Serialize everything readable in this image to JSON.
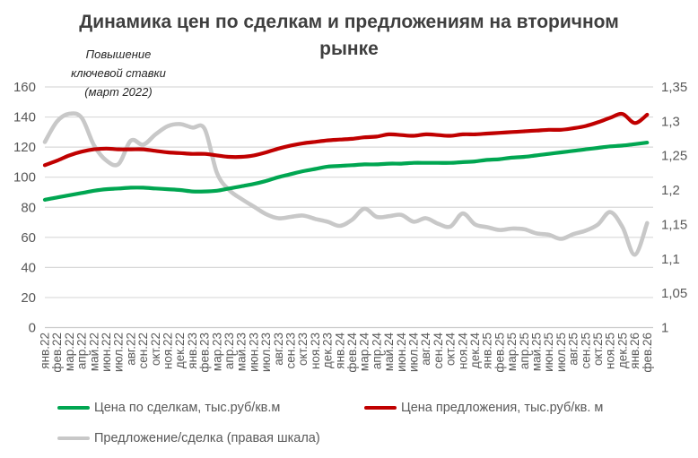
{
  "title": "Динамика цен по сделкам и предложениям на вторичном рынке",
  "annotation": "Повышение\nключевой ставки\n(март 2022)",
  "colors": {
    "deals_line": "#00A651",
    "offers_line": "#C00000",
    "ratio_line": "#C8C8C8",
    "gridline": "#D9D9D9",
    "axis_line": "#C9C9C9",
    "axis_text": "#595959",
    "title_text": "#3F3F3F",
    "annotation_text": "#262626",
    "legend_text": "#595959",
    "background": "#FFFFFF"
  },
  "chart_data": {
    "type": "line",
    "title": "Динамика цен по сделкам и предложениям на вторичном рынке",
    "grid": true,
    "legend_position": "bottom",
    "categories": [
      "янв.22",
      "фев.22",
      "мар.22",
      "апр.22",
      "май.22",
      "июн.22",
      "июл.22",
      "авг.22",
      "сен.22",
      "окт.22",
      "ноя.22",
      "дек.22",
      "янв.23",
      "фев.23",
      "мар.23",
      "апр.23",
      "май.23",
      "июн.23",
      "июл.23",
      "авг.23",
      "сен.23",
      "окт.23",
      "ноя.23",
      "дек.23",
      "янв.24",
      "фев.24",
      "мар.24",
      "апр.24",
      "май.24",
      "июн.24",
      "июл.24",
      "авг.24",
      "сен.24",
      "окт.24",
      "ноя.24",
      "дек.24",
      "янв.25",
      "фев.25",
      "мар.25",
      "апр.25",
      "май.25",
      "июн.25",
      "июл.25",
      "авг.25",
      "сен.25",
      "окт.25",
      "ноя.25",
      "дек.25",
      "янв.26",
      "фев.26"
    ],
    "left_axis": {
      "min": 0,
      "max": 160,
      "step": 20,
      "labels": [
        "160",
        "140",
        "120",
        "100",
        "80",
        "60",
        "40",
        "20",
        "0"
      ]
    },
    "right_axis": {
      "min": 1,
      "max": 1.35,
      "step": 0.05,
      "labels": [
        "1,35",
        "1,3",
        "1,25",
        "1,2",
        "1,15",
        "1,1",
        "1,05",
        "1"
      ]
    },
    "series": [
      {
        "name": "Цена по сделкам, тыс.руб/кв.м",
        "axis": "left",
        "color": "#00A651",
        "width": 4.2,
        "values": [
          85,
          86.5,
          88,
          89.5,
          91,
          92,
          92.5,
          93,
          93,
          92.5,
          92,
          91.5,
          90.5,
          90.5,
          91,
          92.5,
          94,
          95.5,
          97.5,
          100,
          102,
          104,
          105.5,
          107,
          107.5,
          108,
          108.5,
          108.5,
          109,
          109,
          109.5,
          109.5,
          109.5,
          109.5,
          110,
          110.5,
          111.5,
          112,
          113,
          113.5,
          114.5,
          115.5,
          116.5,
          117.5,
          118.5,
          119.5,
          120.5,
          121,
          122,
          123
        ]
      },
      {
        "name": "Цена предложения, тыс.руб/кв. м",
        "axis": "left",
        "color": "#C00000",
        "width": 4.2,
        "values": [
          108,
          111,
          114.5,
          117,
          118.5,
          119,
          118.5,
          118.5,
          118.5,
          117.5,
          116.5,
          116,
          115.5,
          115.5,
          114.5,
          113.5,
          113.5,
          114.5,
          116.5,
          119,
          121,
          122.5,
          123.5,
          124.5,
          125,
          125.5,
          126.5,
          127,
          128.5,
          128,
          127.5,
          128.5,
          128,
          127.5,
          128.5,
          128.5,
          129,
          129.5,
          130,
          130.5,
          131,
          131.5,
          131.5,
          132.5,
          134,
          136.5,
          139.5,
          142,
          136,
          141.5
        ]
      },
      {
        "name": "Предложение/сделка (правая шкала)",
        "axis": "right",
        "color": "#C8C8C8",
        "width": 4.6,
        "values": [
          1.27,
          1.3,
          1.311,
          1.305,
          1.265,
          1.243,
          1.238,
          1.272,
          1.266,
          1.281,
          1.293,
          1.296,
          1.291,
          1.289,
          1.225,
          1.2,
          1.187,
          1.176,
          1.165,
          1.159,
          1.161,
          1.163,
          1.158,
          1.154,
          1.148,
          1.157,
          1.173,
          1.161,
          1.162,
          1.164,
          1.154,
          1.159,
          1.151,
          1.147,
          1.166,
          1.15,
          1.146,
          1.142,
          1.144,
          1.143,
          1.137,
          1.135,
          1.129,
          1.136,
          1.141,
          1.15,
          1.168,
          1.146,
          1.106,
          1.152
        ]
      }
    ]
  }
}
